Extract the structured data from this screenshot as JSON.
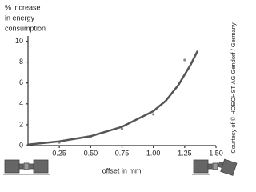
{
  "chart_data": {
    "type": "scatter",
    "y_label": [
      "% increase",
      "in energy",
      "consumption"
    ],
    "x_label": "offset in mm",
    "credit": "Courtesy of © HOECHST AG Gendorf / Germany",
    "xlim": [
      0,
      1.5
    ],
    "ylim": [
      0,
      10.5
    ],
    "xticks": [
      0.25,
      {
        "value": 0.5,
        "label": "0.50"
      },
      0.75,
      {
        "value": 1,
        "label": "1.00"
      },
      1.25,
      {
        "value": 1.5,
        "label": "1.50"
      }
    ],
    "yticks": [
      0,
      2,
      4,
      6,
      8,
      10
    ],
    "series": [
      {
        "style": "markers",
        "color": "#8a8a8a",
        "x": [
          0.25,
          0.5,
          0.75,
          1.0,
          1.25
        ],
        "values": [
          0.3,
          0.8,
          1.6,
          3.0,
          8.2
        ]
      },
      {
        "style": "line",
        "color": "#555555",
        "x": [
          0,
          0.25,
          0.5,
          0.75,
          1.0,
          1.1,
          1.2,
          1.3,
          1.35
        ],
        "values": [
          0.1,
          0.4,
          0.9,
          1.8,
          3.3,
          4.3,
          5.8,
          7.8,
          9.0
        ]
      }
    ]
  }
}
